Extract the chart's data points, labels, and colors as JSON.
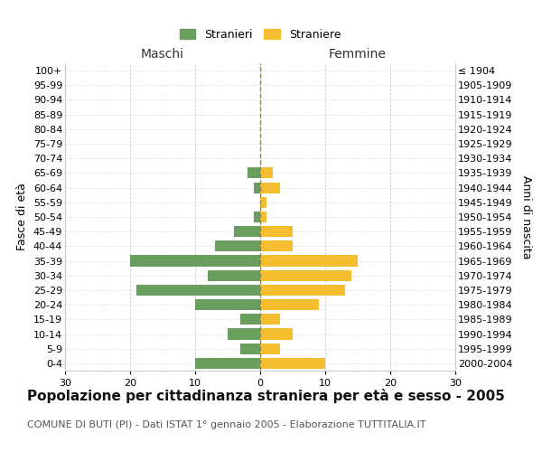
{
  "age_groups_bottom_to_top": [
    "0-4",
    "5-9",
    "10-14",
    "15-19",
    "20-24",
    "25-29",
    "30-34",
    "35-39",
    "40-44",
    "45-49",
    "50-54",
    "55-59",
    "60-64",
    "65-69",
    "70-74",
    "75-79",
    "80-84",
    "85-89",
    "90-94",
    "95-99",
    "100+"
  ],
  "birth_years_bottom_to_top": [
    "2000-2004",
    "1995-1999",
    "1990-1994",
    "1985-1989",
    "1980-1984",
    "1975-1979",
    "1970-1974",
    "1965-1969",
    "1960-1964",
    "1955-1959",
    "1950-1954",
    "1945-1949",
    "1940-1944",
    "1935-1939",
    "1930-1934",
    "1925-1929",
    "1920-1924",
    "1915-1919",
    "1910-1914",
    "1905-1909",
    "≤ 1904"
  ],
  "males_bottom_to_top": [
    10,
    3,
    5,
    3,
    10,
    19,
    8,
    20,
    7,
    4,
    1,
    0,
    1,
    2,
    0,
    0,
    0,
    0,
    0,
    0,
    0
  ],
  "females_bottom_to_top": [
    10,
    3,
    5,
    3,
    9,
    13,
    14,
    15,
    5,
    5,
    1,
    1,
    3,
    2,
    0,
    0,
    0,
    0,
    0,
    0,
    0
  ],
  "male_color": "#6a9e5e",
  "female_color": "#f5be2e",
  "xlim": 30,
  "title": "Popolazione per cittadinanza straniera per età e sesso - 2005",
  "subtitle": "COMUNE DI BUTI (PI) - Dati ISTAT 1° gennaio 2005 - Elaborazione TUTTITALIA.IT",
  "legend_male": "Stranieri",
  "legend_female": "Straniere",
  "ylabel_left": "Fasce di età",
  "ylabel_right": "Anni di nascita",
  "header_left": "Maschi",
  "header_right": "Femmine",
  "bg_color": "#ffffff",
  "grid_color": "#cccccc",
  "center_line_color": "#888855",
  "title_fontsize": 11,
  "subtitle_fontsize": 8,
  "tick_fontsize": 8,
  "header_fontsize": 10
}
